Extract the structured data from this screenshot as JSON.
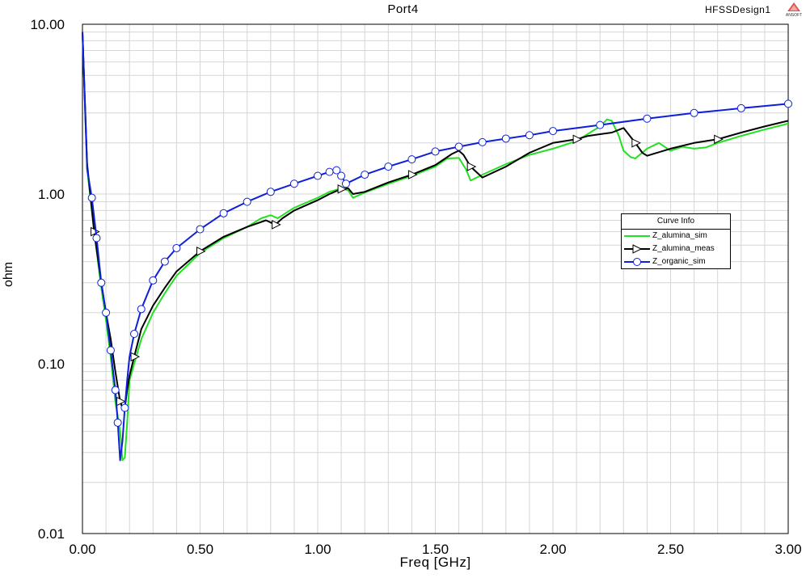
{
  "header": {
    "title": "Port4",
    "design_name": "HFSSDesign1",
    "logo_text": "ANSOFT"
  },
  "legend": {
    "title": "Curve Info"
  },
  "chart_data": {
    "type": "line",
    "title": "Port4",
    "xlabel": "Freq [GHz]",
    "ylabel": "ohm",
    "xlim": [
      0.0,
      3.0
    ],
    "ylim": [
      0.01,
      10.0
    ],
    "yscale": "log",
    "grid": true,
    "legend_position": "right",
    "xticks": [
      "0.00",
      "0.50",
      "1.00",
      "1.50",
      "2.00",
      "2.50",
      "3.00"
    ],
    "yticks": [
      "0.01",
      "0.10",
      "1.00",
      "10.00"
    ],
    "series": [
      {
        "name": "Z_alumina_sim",
        "color": "#22e022",
        "marker": "none",
        "x": [
          0.0,
          0.02,
          0.05,
          0.08,
          0.1,
          0.12,
          0.14,
          0.16,
          0.17,
          0.18,
          0.19,
          0.2,
          0.22,
          0.25,
          0.3,
          0.35,
          0.4,
          0.5,
          0.6,
          0.7,
          0.76,
          0.8,
          0.83,
          0.85,
          0.9,
          1.0,
          1.05,
          1.1,
          1.13,
          1.15,
          1.2,
          1.3,
          1.4,
          1.5,
          1.55,
          1.6,
          1.63,
          1.65,
          1.7,
          1.8,
          1.9,
          2.0,
          2.1,
          2.2,
          2.23,
          2.25,
          2.28,
          2.3,
          2.33,
          2.35,
          2.4,
          2.45,
          2.5,
          2.55,
          2.6,
          2.65,
          2.7,
          2.8,
          2.9,
          3.0
        ],
        "y": [
          9.0,
          1.4,
          0.6,
          0.28,
          0.18,
          0.11,
          0.06,
          0.04,
          0.027,
          0.028,
          0.045,
          0.08,
          0.1,
          0.14,
          0.2,
          0.26,
          0.33,
          0.45,
          0.55,
          0.64,
          0.72,
          0.75,
          0.72,
          0.75,
          0.83,
          0.95,
          1.03,
          1.08,
          1.05,
          0.95,
          1.02,
          1.15,
          1.28,
          1.45,
          1.62,
          1.63,
          1.4,
          1.2,
          1.3,
          1.5,
          1.7,
          1.85,
          2.05,
          2.5,
          2.75,
          2.7,
          2.2,
          1.8,
          1.65,
          1.62,
          1.85,
          2.0,
          1.8,
          1.9,
          1.85,
          1.88,
          2.0,
          2.2,
          2.4,
          2.6
        ]
      },
      {
        "name": "Z_alumina_meas",
        "color": "#000000",
        "marker": "triangle",
        "x": [
          0.0,
          0.02,
          0.05,
          0.08,
          0.1,
          0.12,
          0.14,
          0.16,
          0.17,
          0.18,
          0.19,
          0.2,
          0.22,
          0.25,
          0.3,
          0.35,
          0.4,
          0.5,
          0.6,
          0.7,
          0.78,
          0.8,
          0.82,
          0.85,
          0.9,
          1.0,
          1.05,
          1.1,
          1.13,
          1.15,
          1.2,
          1.3,
          1.4,
          1.5,
          1.57,
          1.6,
          1.62,
          1.65,
          1.7,
          1.8,
          1.9,
          2.0,
          2.1,
          2.15,
          2.2,
          2.25,
          2.3,
          2.35,
          2.38,
          2.4,
          2.5,
          2.6,
          2.7,
          2.8,
          2.9,
          3.0
        ],
        "y": [
          9.0,
          1.5,
          0.6,
          0.3,
          0.2,
          0.14,
          0.09,
          0.06,
          0.055,
          0.055,
          0.07,
          0.085,
          0.11,
          0.16,
          0.22,
          0.28,
          0.35,
          0.46,
          0.56,
          0.64,
          0.7,
          0.68,
          0.66,
          0.72,
          0.8,
          0.92,
          1.0,
          1.07,
          1.08,
          1.0,
          1.03,
          1.17,
          1.3,
          1.48,
          1.72,
          1.8,
          1.7,
          1.45,
          1.25,
          1.45,
          1.75,
          2.0,
          2.1,
          2.2,
          2.25,
          2.3,
          2.45,
          2.0,
          1.75,
          1.68,
          1.85,
          2.0,
          2.1,
          2.3,
          2.5,
          2.7
        ]
      },
      {
        "name": "Z_organic_sim",
        "color": "#0d1fd8",
        "marker": "circle",
        "x": [
          0.0,
          0.02,
          0.04,
          0.06,
          0.08,
          0.1,
          0.12,
          0.14,
          0.15,
          0.16,
          0.17,
          0.18,
          0.19,
          0.2,
          0.22,
          0.25,
          0.3,
          0.35,
          0.4,
          0.5,
          0.6,
          0.7,
          0.8,
          0.9,
          1.0,
          1.05,
          1.08,
          1.1,
          1.12,
          1.2,
          1.3,
          1.4,
          1.5,
          1.6,
          1.7,
          1.8,
          1.9,
          2.0,
          2.2,
          2.4,
          2.6,
          2.8,
          3.0
        ],
        "y": [
          9.0,
          1.4,
          0.95,
          0.55,
          0.3,
          0.2,
          0.12,
          0.07,
          0.045,
          0.027,
          0.035,
          0.055,
          0.08,
          0.11,
          0.15,
          0.21,
          0.31,
          0.4,
          0.48,
          0.62,
          0.77,
          0.9,
          1.03,
          1.15,
          1.28,
          1.35,
          1.38,
          1.28,
          1.15,
          1.3,
          1.45,
          1.6,
          1.78,
          1.9,
          2.02,
          2.12,
          2.22,
          2.35,
          2.55,
          2.78,
          3.0,
          3.2,
          3.4
        ]
      }
    ]
  }
}
